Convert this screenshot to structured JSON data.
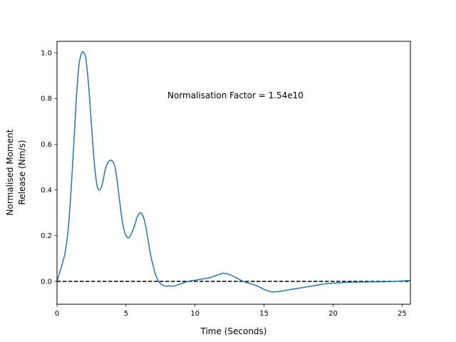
{
  "chart_data": {
    "type": "line",
    "title": "",
    "xlabel": "Time (Seconds)",
    "ylabel_lines": [
      "Normalised Moment",
      "Release (Nm/s)"
    ],
    "xlim": [
      0,
      25.6
    ],
    "ylim": [
      -0.1,
      1.05
    ],
    "xticks": [
      {
        "value": 0,
        "label": "0"
      },
      {
        "value": 5,
        "label": "5"
      },
      {
        "value": 10,
        "label": "10"
      },
      {
        "value": 15,
        "label": "15"
      },
      {
        "value": 20,
        "label": "20"
      },
      {
        "value": 25,
        "label": "25"
      }
    ],
    "yticks": [
      {
        "value": 0.0,
        "label": "0.0"
      },
      {
        "value": 0.2,
        "label": "0.2"
      },
      {
        "value": 0.4,
        "label": "0.4"
      },
      {
        "value": 0.6,
        "label": "0.6"
      },
      {
        "value": 0.8,
        "label": "0.8"
      },
      {
        "value": 1.0,
        "label": "1.0"
      }
    ],
    "grid": false,
    "legend": "none",
    "series": [
      {
        "color": "#1f77b4",
        "x": [
          0,
          0.2,
          0.4,
          0.6,
          0.8,
          1.0,
          1.2,
          1.4,
          1.6,
          1.8,
          1.95,
          2.1,
          2.3,
          2.5,
          2.7,
          2.9,
          3.1,
          3.3,
          3.5,
          3.7,
          3.95,
          4.2,
          4.4,
          4.6,
          4.8,
          5.0,
          5.2,
          5.4,
          5.6,
          5.8,
          6.0,
          6.2,
          6.4,
          6.6,
          6.8,
          7.0,
          7.2,
          7.5,
          7.8,
          8.1,
          8.5,
          9.0,
          9.5,
          10.0,
          10.5,
          11.0,
          11.5,
          12.0,
          12.5,
          13.0,
          13.5,
          14.0,
          14.5,
          15.0,
          15.5,
          16.0,
          16.5,
          17.0,
          17.5,
          18.0,
          18.5,
          19.0,
          19.5,
          20.0,
          20.5,
          21.0,
          22.0,
          23.0,
          24.0,
          25.0,
          25.6
        ],
        "values": [
          0.0,
          0.04,
          0.08,
          0.13,
          0.22,
          0.38,
          0.58,
          0.8,
          0.95,
          1.0,
          1.0,
          0.97,
          0.85,
          0.68,
          0.52,
          0.42,
          0.4,
          0.43,
          0.49,
          0.52,
          0.53,
          0.5,
          0.42,
          0.32,
          0.24,
          0.2,
          0.19,
          0.21,
          0.24,
          0.28,
          0.3,
          0.29,
          0.25,
          0.18,
          0.11,
          0.06,
          0.02,
          -0.01,
          -0.02,
          -0.02,
          -0.02,
          -0.01,
          0.0,
          0.005,
          0.01,
          0.015,
          0.025,
          0.035,
          0.03,
          0.015,
          0.0,
          -0.01,
          -0.02,
          -0.035,
          -0.045,
          -0.045,
          -0.04,
          -0.035,
          -0.03,
          -0.025,
          -0.02,
          -0.015,
          -0.01,
          -0.008,
          -0.006,
          -0.004,
          -0.003,
          -0.002,
          -0.001,
          0.002,
          0.004
        ]
      }
    ],
    "reference_line": {
      "y": 0,
      "color": "#000000",
      "style": "dashed"
    },
    "annotation": "Normalisation Factor = 1.54e10"
  }
}
